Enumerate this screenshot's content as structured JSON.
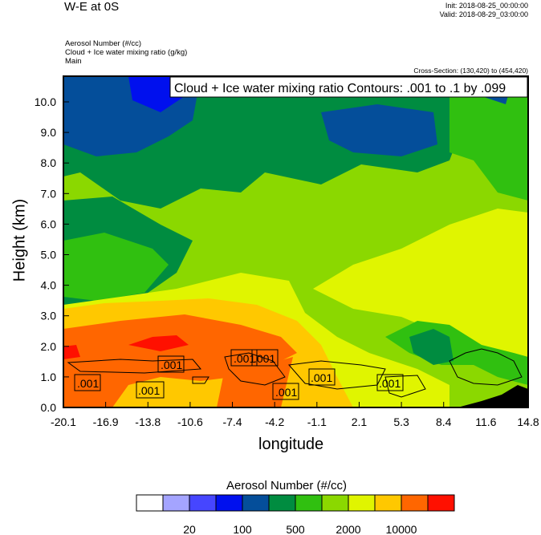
{
  "header": {
    "title": "W-E at 0S",
    "init": "Init: 2018-08-25_00:00:00",
    "valid": "Valid: 2018-08-29_03:00:00",
    "subtitles": [
      "Aerosol Number   (#/cc)",
      "Cloud + Ice water mixing ratio   (g/kg)",
      "Main"
    ],
    "cross_section": "Cross-Section: (130,420) to (454,420)"
  },
  "chart_data": {
    "type": "heatmap",
    "description_fields": [
      "Aerosol Number (#/cc) filled contours",
      "Cloud + Ice water mixing ratio (g/kg) line contours"
    ],
    "contour_info": "Cloud + Ice water mixing ratio Contours: .001 to .1 by .099",
    "xlabel": "longitude",
    "ylabel": "Height (km)",
    "xlim": [
      -20.1,
      14.8
    ],
    "ylim": [
      0,
      10.8
    ],
    "x_ticks": [
      "-20.1",
      "-16.9",
      "-13.8",
      "-10.6",
      "-7.4",
      "-4.2",
      "-1.1",
      "2.1",
      "5.3",
      "8.4",
      "11.6",
      "14.8"
    ],
    "y_ticks": [
      "0.0",
      "1.0",
      "2.0",
      "3.0",
      "4.0",
      "5.0",
      "6.0",
      "7.0",
      "8.0",
      "9.0",
      "10.0"
    ],
    "contour_labels": [
      ".001",
      ".001",
      ".001",
      ".001",
      ".001",
      ".001",
      ".001",
      ".001"
    ],
    "colorbar": {
      "title": "Aerosol Number  (#/cc)",
      "colors": [
        "#ffffff",
        "#a4a4ff",
        "#4646ff",
        "#0010ee",
        "#044e9a",
        "#008c40",
        "#30c010",
        "#8bd800",
        "#e0f500",
        "#ffc800",
        "#ff6600",
        "#ff1000"
      ],
      "labels": [
        "20",
        "100",
        "500",
        "2000",
        "10000"
      ]
    }
  }
}
